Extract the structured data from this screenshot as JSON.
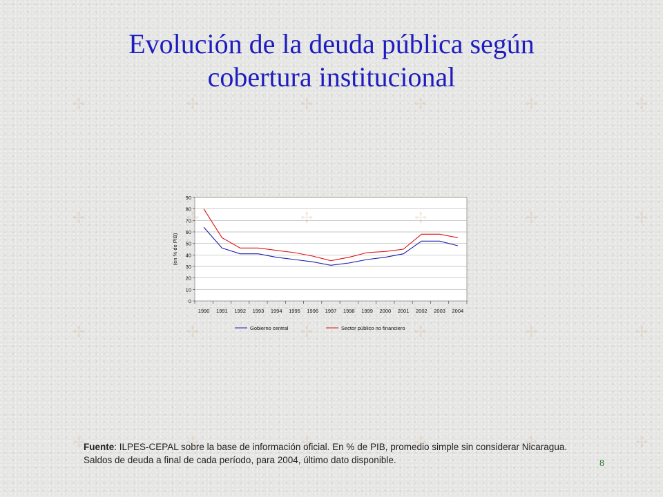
{
  "slide": {
    "title_line1": "Evolución de la deuda pública según",
    "title_line2": "cobertura institucional",
    "source_label": "Fuente",
    "source_text": ": ILPES-CEPAL sobre la base de información oficial. En % de PIB, promedio simple sin considerar Nicaragua. Saldos de deuda a final de cada período, para 2004, último dato disponible.",
    "page_number": "8"
  },
  "colors": {
    "title": "#1d1dbf",
    "series_gobierno": "#1c1ca8",
    "series_sector": "#e01010",
    "page_number": "#2a7a2a"
  },
  "chart_data": {
    "type": "line",
    "title": "",
    "xlabel": "",
    "ylabel": "(en % de PIB)",
    "x": [
      "1990",
      "1991",
      "1992",
      "1993",
      "1994",
      "1995",
      "1996",
      "1997",
      "1998",
      "1999",
      "2000",
      "2001",
      "2002",
      "2003",
      "2004"
    ],
    "ylim": [
      0,
      90
    ],
    "yticks": [
      0,
      10,
      20,
      30,
      40,
      50,
      60,
      70,
      80,
      90
    ],
    "grid": true,
    "legend_position": "bottom",
    "series": [
      {
        "name": "Gobierno central",
        "values": [
          64,
          46,
          41,
          41,
          38,
          36,
          34,
          31,
          33,
          36,
          38,
          41,
          52,
          52,
          48
        ]
      },
      {
        "name": "Sector público no financiero",
        "values": [
          80,
          55,
          46,
          46,
          44,
          42,
          39,
          35,
          38,
          42,
          43,
          45,
          58,
          58,
          55
        ]
      }
    ]
  }
}
